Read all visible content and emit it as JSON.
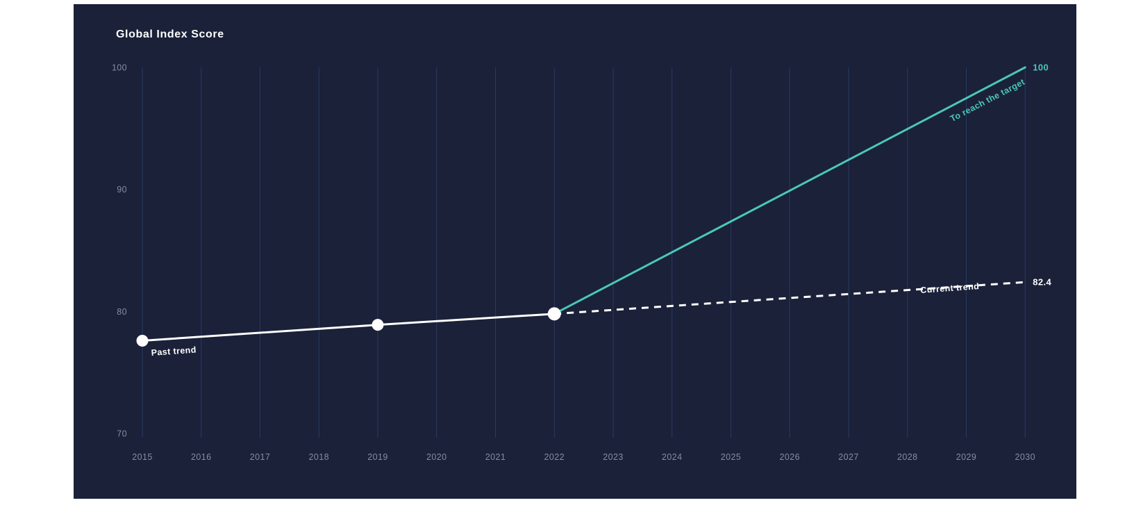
{
  "page": {
    "background": "#ffffff"
  },
  "panel": {
    "background": "#1a2138"
  },
  "chart_data": {
    "type": "line",
    "title": "Global Index Score",
    "xlabel": "",
    "ylabel": "",
    "x_ticks": [
      "2015",
      "2016",
      "2017",
      "2018",
      "2019",
      "2020",
      "2021",
      "2022",
      "2023",
      "2024",
      "2025",
      "2026",
      "2027",
      "2028",
      "2029",
      "2030"
    ],
    "x_range": [
      2015,
      2030
    ],
    "y_ticks": [
      100,
      90,
      80,
      70
    ],
    "ylim": [
      70,
      100
    ],
    "grid": {
      "vertical": true,
      "horizontal": false,
      "color": "#2a3a64"
    },
    "legend_position": "inline-labels",
    "colors": {
      "background": "#1a2138",
      "accent_teal": "#4bc7b5",
      "line_white": "#ffffff",
      "axis_text": "#878da0"
    },
    "series": [
      {
        "name": "Past trend",
        "style": "solid",
        "color": "#ffffff",
        "markers": true,
        "points": [
          {
            "x": 2015,
            "y": 77.6
          },
          {
            "x": 2019,
            "y": 78.9
          },
          {
            "x": 2022,
            "y": 79.8
          }
        ]
      },
      {
        "name": "Current trend",
        "style": "dashed",
        "color": "#ffffff",
        "markers": false,
        "end_label": "82.4",
        "points": [
          {
            "x": 2022,
            "y": 79.8
          },
          {
            "x": 2030,
            "y": 82.4
          }
        ]
      },
      {
        "name": "To reach the target",
        "style": "solid",
        "color": "#4bc7b5",
        "markers": false,
        "end_label": "100",
        "points": [
          {
            "x": 2022,
            "y": 79.8
          },
          {
            "x": 2030,
            "y": 100
          }
        ]
      }
    ]
  }
}
